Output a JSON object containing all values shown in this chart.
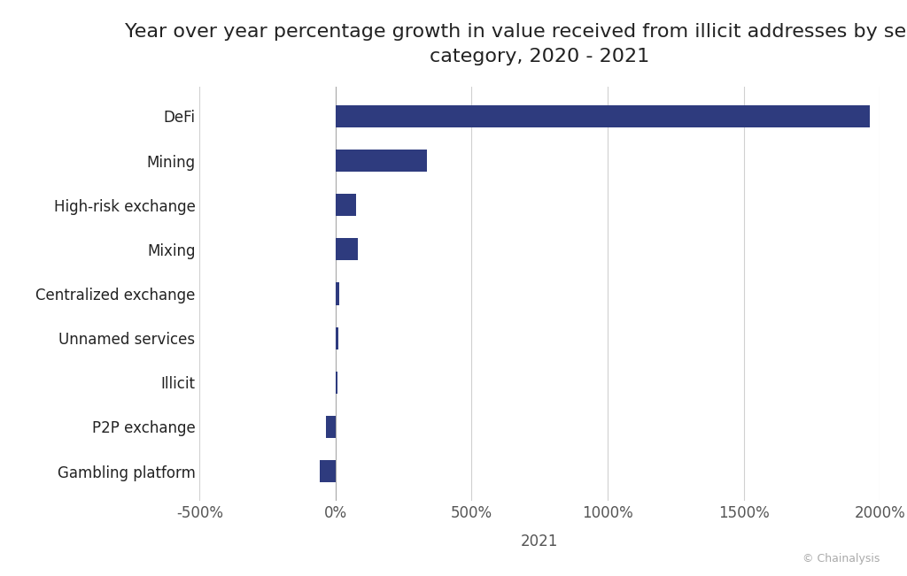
{
  "title_line1": "Year over year percentage growth in value received from illicit addresses by service",
  "title_line2": "category, 2020 - 2021",
  "categories": [
    "DeFi",
    "Mining",
    "High-risk exchange",
    "Mixing",
    "Centralized exchange",
    "Unnamed services",
    "Illicit",
    "P2P exchange",
    "Gambling platform"
  ],
  "values": [
    1964,
    335,
    75,
    83,
    15,
    10,
    8,
    -36,
    -58
  ],
  "bar_color": "#2e3b7e",
  "background_color": "#ffffff",
  "xlabel": "2021",
  "xlim": [
    -500,
    2000
  ],
  "xticks": [
    -500,
    0,
    500,
    1000,
    1500,
    2000
  ],
  "xticklabels": [
    "-500%",
    "0%",
    "500%",
    "1000%",
    "1500%",
    "2000%"
  ],
  "grid_color": "#d0d0d0",
  "title_fontsize": 16,
  "tick_fontsize": 12,
  "label_fontsize": 12,
  "xlabel_fontsize": 12,
  "copyright_text": "© Chainalysis",
  "bar_height": 0.5
}
